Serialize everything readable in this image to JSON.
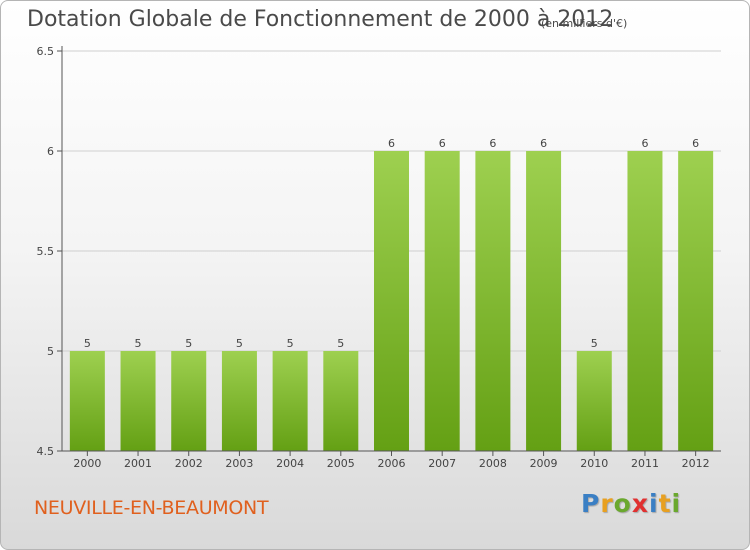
{
  "title": "Dotation Globale de Fonctionnement de 2000 à 2012",
  "subtitle": "(en milliers d'€)",
  "commune": "NEUVILLE-EN-BEAUMONT",
  "logo": {
    "text": "Proxiti",
    "letters": [
      {
        "char": "P",
        "color": "#3a7fc4"
      },
      {
        "char": "r",
        "color": "#e8a020"
      },
      {
        "char": "o",
        "color": "#6aa82e"
      },
      {
        "char": "x",
        "color": "#e03030"
      },
      {
        "char": "i",
        "color": "#3a7fc4"
      },
      {
        "char": "t",
        "color": "#e8a020"
      },
      {
        "char": "i",
        "color": "#6aa82e"
      }
    ]
  },
  "colors": {
    "bar_light": "#9ed050",
    "bar_dark": "#64a014",
    "axis": "#555555",
    "grid": "#cfcfcf",
    "text": "#444444"
  },
  "chart_data": {
    "type": "bar",
    "categories": [
      "2000",
      "2001",
      "2002",
      "2003",
      "2004",
      "2005",
      "2006",
      "2007",
      "2008",
      "2009",
      "2010",
      "2011",
      "2012"
    ],
    "values": [
      5,
      5,
      5,
      5,
      5,
      5,
      6,
      6,
      6,
      6,
      5,
      6,
      6
    ],
    "data_labels": [
      "5",
      "5",
      "5",
      "5",
      "5",
      "5",
      "6",
      "6",
      "6",
      "6",
      "5",
      "6",
      "6"
    ],
    "yticks": [
      4.5,
      5,
      5.5,
      6,
      6.5
    ],
    "ytick_labels": [
      "4.5",
      "5",
      "5.5",
      "6",
      "6.5"
    ],
    "ylim": [
      4.5,
      6.5
    ],
    "grid": true,
    "title": "Dotation Globale de Fonctionnement de 2000 à 2012",
    "xlabel": "",
    "ylabel": ""
  }
}
